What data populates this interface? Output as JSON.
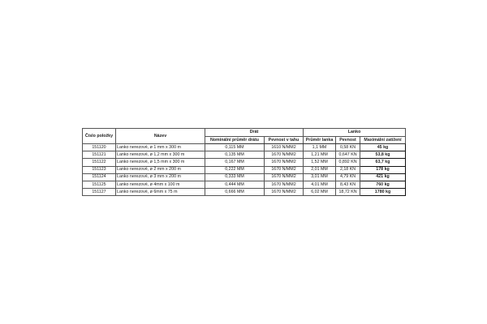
{
  "table": {
    "headers": {
      "item_number": "Číslo položky",
      "name": "Název",
      "group_wire": "Drát",
      "group_rope": "Lanko",
      "wire_diameter": "Nominální průměr drátu",
      "tensile_strength": "Pevnost v tahu",
      "rope_diameter": "Průměr lanka",
      "rope_strength": "Pevnost",
      "max_load": "Maximální zatížení"
    },
    "rows": [
      {
        "id": "151120",
        "name": "Lanko nerezové, ø 1 mm x 300 m",
        "wire": "0,115 MM",
        "tensile": "1610 N/MM2",
        "diameter": "1,1 MM",
        "strength": "0,58 KN",
        "max": "45 kg"
      },
      {
        "id": "151121",
        "name": "Lanko nerezové, ø 1,2 mm x 300 m",
        "wire": "0,135 MM",
        "tensile": "1670 N/MM2",
        "diameter": "1,21 MM",
        "strength": "0,647 KN",
        "max": "53,8 kg"
      },
      {
        "id": "151122",
        "name": "Lanko nerezové, ø 1,5 mm x 300 m",
        "wire": "0,167 MM",
        "tensile": "1670 N/MM2",
        "diameter": "1,52 MM",
        "strength": "0,892 KN",
        "max": "63,7 kg"
      },
      {
        "id": "151123",
        "name": "Lanko nerezové, ø 2 mm x 200 m",
        "wire": "0,222 MM",
        "tensile": "1670 N/MM2",
        "diameter": "2,01 MM",
        "strength": "2,18 KN",
        "max": "178 kg"
      },
      {
        "id": "151124",
        "name": "Lanko nerezové, ø 3 mm x 200 m",
        "wire": "0,333 MM",
        "tensile": "1670 N/MM2",
        "diameter": "3,01 MM",
        "strength": "4,79 KN",
        "max": "421 kg"
      },
      {
        "id": "151125",
        "name": "Lanko nerezové, ø 4mm x 100 m",
        "wire": "0,444 MM",
        "tensile": "1670 N/MM2",
        "diameter": "4,01 MM",
        "strength": "8,43 KN",
        "max": "760 kg"
      },
      {
        "id": "151127",
        "name": "Lanko nerezové, ø 6mm x 75 m",
        "wire": "0,666 MM",
        "tensile": "1670 N/MM2",
        "diameter": "6,02 MM",
        "strength": "18,72 KN",
        "max": "1780 kg"
      }
    ]
  }
}
